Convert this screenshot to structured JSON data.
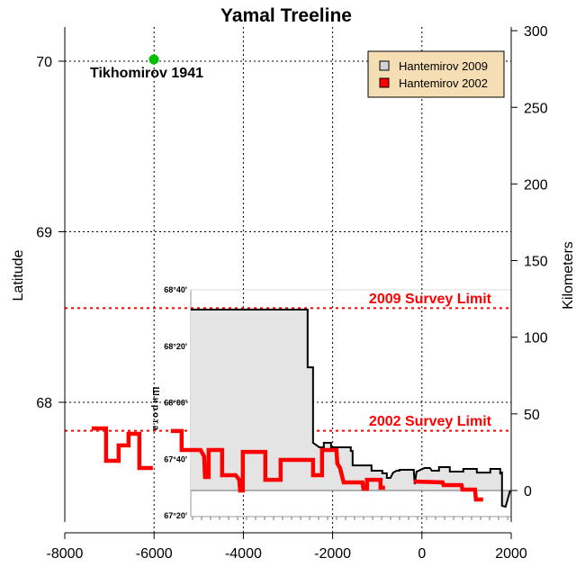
{
  "chart_data": {
    "type": "line",
    "title": "Yamal Treeline",
    "xlabel": "",
    "ylabel": "Latitude",
    "ylabel_right": "Kilometers",
    "xlim": [
      -8000,
      2000
    ],
    "ylim_left": [
      67.4,
      70.2
    ],
    "ylim_right": [
      -25,
      300
    ],
    "x_ticks": [
      -8000,
      -6000,
      -4000,
      -2000,
      0,
      2000
    ],
    "x_tick_labels": [
      "-8000",
      "-6000",
      "-4000",
      "-2000",
      "0",
      "2000"
    ],
    "y_left_ticks": [
      70,
      69,
      68
    ],
    "y_left_tick_labels": [
      "70",
      "69",
      "68"
    ],
    "y_right_ticks": [
      300,
      250,
      200,
      150,
      100,
      50,
      0
    ],
    "y_right_tick_labels": [
      "300",
      "250",
      "200",
      "150",
      "100",
      "50",
      "0"
    ],
    "grid": "dotted at major ticks",
    "legend": {
      "placement": "top-right",
      "entries": [
        {
          "label": "Hantemirov 2009",
          "color": "#d3d3d3"
        },
        {
          "label": "Hantemirov 2002",
          "color": "#ff0000"
        }
      ]
    },
    "annotations": [
      {
        "label": "Tikhomirov 1941",
        "x": -6000,
        "lat": 70.0,
        "color": "#00c000"
      },
      {
        "label": "2009 Survey Limit",
        "km": 119,
        "color": "#ff0000"
      },
      {
        "label": "2002 Survey Limit",
        "km": 39,
        "color": "#ff0000"
      }
    ],
    "inset": {
      "axis_label": "Широта",
      "tick_labels": [
        "68°40'",
        "68°20'",
        "68°00'",
        "67°40'",
        "67°20'"
      ]
    },
    "series": [
      {
        "name": "Hantemirov 2009",
        "color": "#000000",
        "fill": "#e4e4e4",
        "units": "year, km",
        "points": [
          [
            -5181,
            118
          ],
          [
            -2560,
            118
          ],
          [
            -2560,
            80.4
          ],
          [
            -2439,
            80.4
          ],
          [
            -2439,
            31.1
          ],
          [
            -2298,
            28.2
          ],
          [
            -2197,
            28.2
          ],
          [
            -2197,
            31.1
          ],
          [
            -2036,
            31.1
          ],
          [
            -2036,
            28.2
          ],
          [
            -1593,
            28.2
          ],
          [
            -1593,
            25.8
          ],
          [
            -1552,
            25.8
          ],
          [
            -1552,
            16.4
          ],
          [
            -1129,
            16.4
          ],
          [
            -1129,
            12.9
          ],
          [
            -887,
            12.9
          ],
          [
            -887,
            11.2
          ],
          [
            -786,
            11.2
          ],
          [
            -786,
            8.2
          ],
          [
            -706,
            8.2
          ],
          [
            -645,
            11.7
          ],
          [
            -564,
            12.9
          ],
          [
            -504,
            12.9
          ],
          [
            -504,
            13.5
          ],
          [
            -181,
            13.5
          ],
          [
            -181,
            12.3
          ],
          [
            -161,
            4.1
          ],
          [
            -121,
            12.3
          ],
          [
            60,
            14.7
          ],
          [
            181,
            14.7
          ],
          [
            222,
            12.9
          ],
          [
            383,
            12.9
          ],
          [
            383,
            15.3
          ],
          [
            625,
            15.3
          ],
          [
            625,
            12.3
          ],
          [
            927,
            12.3
          ],
          [
            927,
            14.1
          ],
          [
            1230,
            14.1
          ],
          [
            1230,
            11.7
          ],
          [
            1532,
            11.7
          ],
          [
            1532,
            14.1
          ],
          [
            1754,
            14.1
          ],
          [
            1754,
            11.2
          ],
          [
            1794,
            11.7
          ],
          [
            1794,
            -10.0
          ],
          [
            1875,
            -10.6
          ],
          [
            1976,
            0
          ]
        ]
      },
      {
        "name": "Hantemirov 2002",
        "color": "#ff0000",
        "units": "year, km",
        "segments": [
          [
            [
              -7399,
              40.5
            ],
            [
              -7076,
              40.5
            ],
            [
              -7076,
              19.4
            ],
            [
              -6794,
              19.4
            ],
            [
              -6794,
              29.4
            ],
            [
              -6572,
              29.4
            ],
            [
              -6572,
              37.0
            ],
            [
              -6330,
              37.0
            ],
            [
              -6330,
              14.7
            ],
            [
              -6028,
              14.7
            ]
          ],
          [
            [
              -5625,
              38.8
            ],
            [
              -5383,
              38.8
            ],
            [
              -5383,
              26.4
            ],
            [
              -4959,
              26.4
            ],
            [
              -4879,
              22.3
            ],
            [
              -4859,
              8.8
            ],
            [
              -4778,
              8.8
            ],
            [
              -4778,
              26.4
            ],
            [
              -4476,
              26.4
            ],
            [
              -4476,
              10.0
            ],
            [
              -4173,
              10.0
            ],
            [
              -4092,
              7.0
            ],
            [
              -4072,
              0
            ],
            [
              -4012,
              0
            ],
            [
              -4012,
              25.2
            ],
            [
              -3508,
              25.2
            ],
            [
              -3508,
              7.0
            ],
            [
              -3165,
              7.0
            ],
            [
              -3165,
              20.0
            ],
            [
              -2439,
              20.0
            ],
            [
              -2439,
              10.0
            ],
            [
              -2238,
              10.0
            ],
            [
              -2238,
              26.4
            ],
            [
              -1915,
              26.4
            ],
            [
              -1895,
              17.6
            ],
            [
              -1835,
              14.7
            ],
            [
              -1754,
              5.3
            ],
            [
              -1331,
              5.3
            ],
            [
              -1310,
              1.2
            ],
            [
              -1230,
              1.2
            ],
            [
              -1230,
              7.0
            ],
            [
              -927,
              7.0
            ],
            [
              -927,
              1.8
            ],
            [
              -827,
              1.8
            ]
          ],
          [
            [
              -181,
              5.9
            ],
            [
              464,
              5.3
            ],
            [
              484,
              3.5
            ],
            [
              887,
              3.5
            ],
            [
              907,
              0.6
            ],
            [
              1189,
              0.6
            ],
            [
              1210,
              -5.9
            ],
            [
              1371,
              -5.9
            ]
          ]
        ]
      }
    ]
  }
}
